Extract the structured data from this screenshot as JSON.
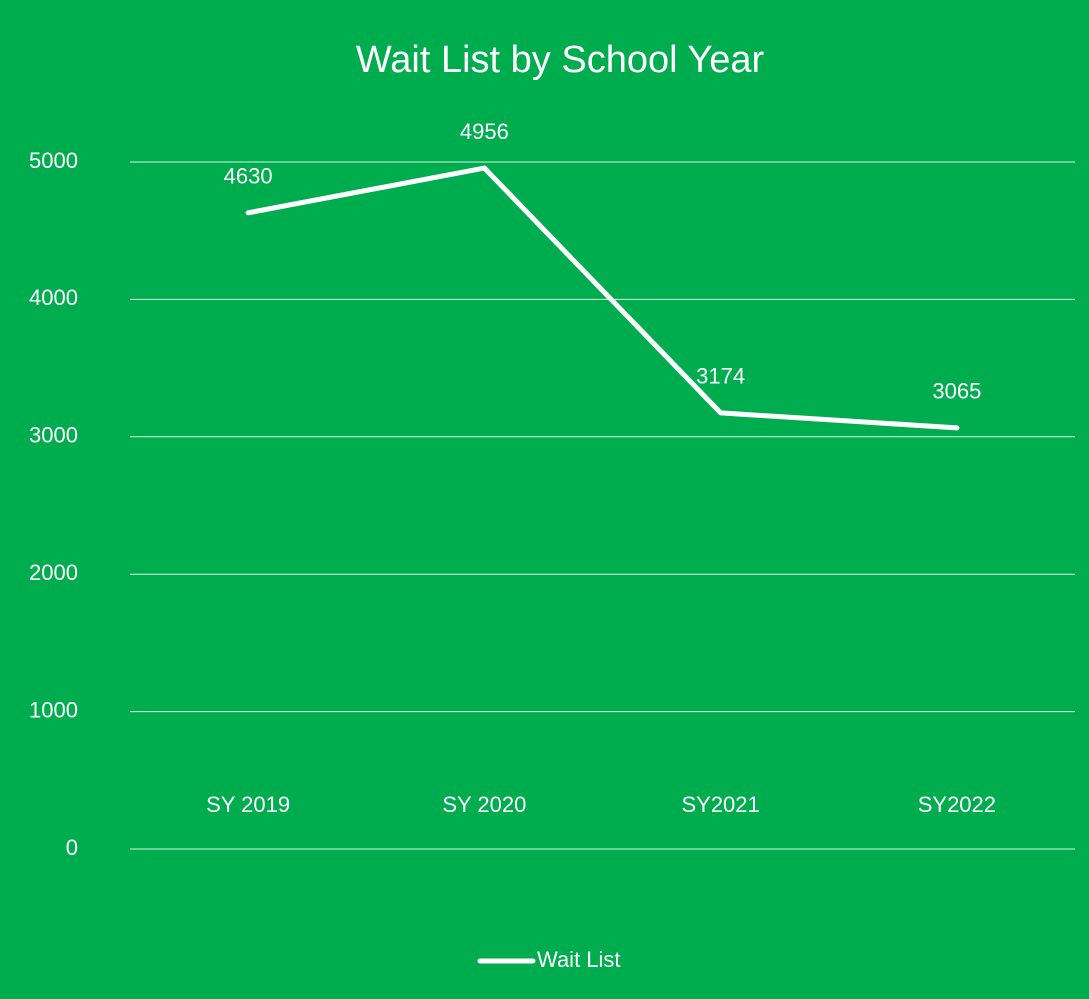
{
  "chart_data": {
    "type": "line",
    "title": "Wait List by School Year",
    "categories": [
      "SY 2019",
      "SY 2020",
      "SY2021",
      "SY2022"
    ],
    "series": [
      {
        "name": "Wait List",
        "color": "#ffffff",
        "values": [
          4630,
          4956,
          3174,
          3065
        ]
      }
    ],
    "ylim": [
      0,
      5000
    ],
    "yticks": [
      0,
      1000,
      2000,
      3000,
      4000,
      5000
    ],
    "grid": true,
    "legend": "bottom",
    "data_labels": true,
    "background": "#00ad4e"
  }
}
